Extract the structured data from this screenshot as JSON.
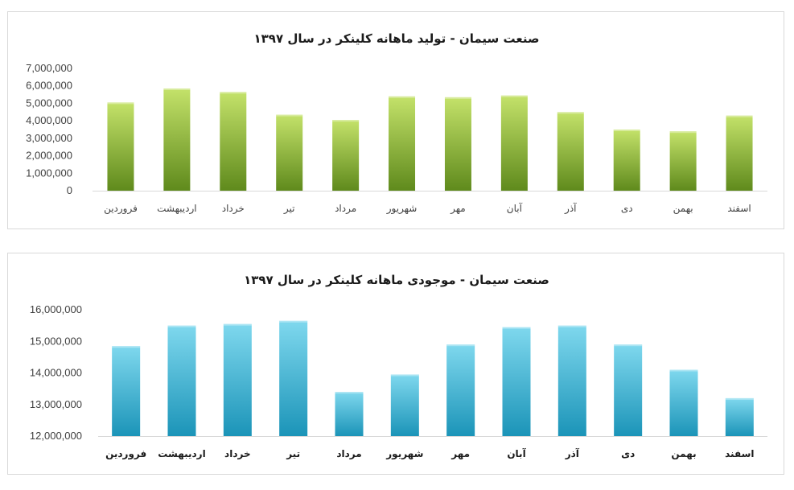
{
  "colors": {
    "green_top": "#c4e26a",
    "green_bottom": "#5f8a1c",
    "blue_top": "#7fd8ee",
    "blue_bottom": "#1b94b8"
  },
  "chart_data": [
    {
      "type": "bar",
      "title": "صنعت سیمان - تولید ماهانه کلینکر در سال ۱۳۹۷",
      "categories": [
        "فروردین",
        "اردیبهشت",
        "خرداد",
        "تیر",
        "مرداد",
        "شهریور",
        "مهر",
        "آبان",
        "آذر",
        "دی",
        "بهمن",
        "اسفند"
      ],
      "values": [
        5050000,
        5850000,
        5650000,
        4350000,
        4050000,
        5400000,
        5350000,
        5450000,
        4500000,
        3500000,
        3400000,
        4300000
      ],
      "ylim": [
        0,
        7000000
      ],
      "yticks": [
        "0",
        "1,000,000",
        "2,000,000",
        "3,000,000",
        "4,000,000",
        "5,000,000",
        "6,000,000",
        "7,000,000"
      ],
      "grid": false,
      "color": "green"
    },
    {
      "type": "bar",
      "title": "صنعت سیمان - موجودی ماهانه کلینکر در سال ۱۳۹۷",
      "categories": [
        "فروردین",
        "اردیبهشت",
        "خرداد",
        "تیر",
        "مرداد",
        "شهریور",
        "مهر",
        "آبان",
        "آذر",
        "دی",
        "بهمن",
        "اسفند"
      ],
      "values": [
        14850000,
        15500000,
        15550000,
        15650000,
        13400000,
        13950000,
        14900000,
        15450000,
        15500000,
        14900000,
        14100000,
        13200000
      ],
      "ylim": [
        12000000,
        16000000
      ],
      "yticks": [
        "12,000,000",
        "13,000,000",
        "14,000,000",
        "15,000,000",
        "16,000,000"
      ],
      "grid": false,
      "color": "blue"
    }
  ]
}
